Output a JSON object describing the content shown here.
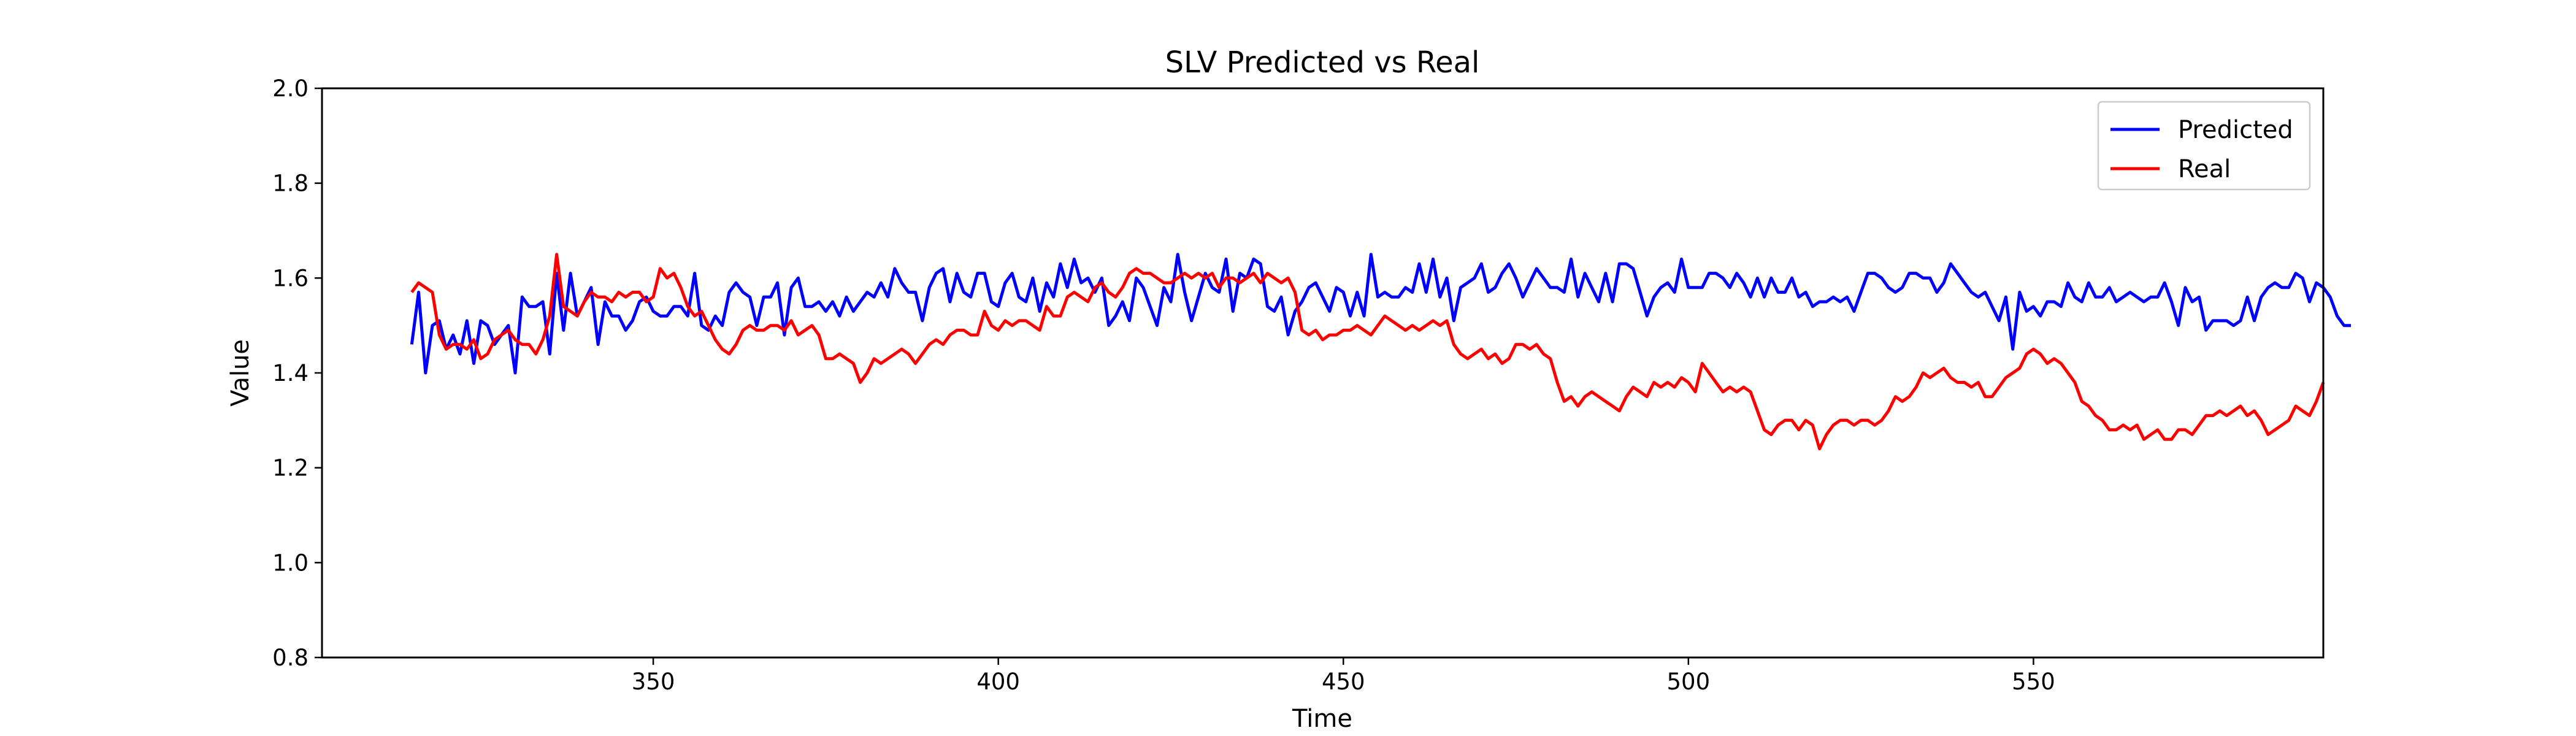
{
  "chart_data": {
    "type": "line",
    "title": "SLV Predicted vs Real",
    "xlabel": "Time",
    "ylabel": "Value",
    "xlim": [
      302,
      592
    ],
    "ylim": [
      0.8,
      2.0
    ],
    "x_ticks": [
      350,
      400,
      450,
      500,
      550
    ],
    "y_ticks": [
      0.8,
      1.0,
      1.2,
      1.4,
      1.6,
      1.8,
      2.0
    ],
    "y_tick_labels": [
      "0.8",
      "1.0",
      "1.2",
      "1.4",
      "1.6",
      "1.8",
      "2.0"
    ],
    "grid": false,
    "legend_position": "upper right",
    "x_start": 315,
    "series": [
      {
        "name": "Predicted",
        "color": "#0000ff",
        "values": [
          1.46,
          1.57,
          1.4,
          1.5,
          1.51,
          1.45,
          1.48,
          1.44,
          1.51,
          1.42,
          1.51,
          1.5,
          1.46,
          1.48,
          1.5,
          1.4,
          1.56,
          1.54,
          1.54,
          1.55,
          1.44,
          1.61,
          1.49,
          1.61,
          1.52,
          1.55,
          1.58,
          1.46,
          1.55,
          1.52,
          1.52,
          1.49,
          1.51,
          1.55,
          1.56,
          1.53,
          1.52,
          1.52,
          1.54,
          1.54,
          1.52,
          1.61,
          1.5,
          1.49,
          1.52,
          1.5,
          1.57,
          1.59,
          1.57,
          1.56,
          1.5,
          1.56,
          1.56,
          1.59,
          1.48,
          1.58,
          1.6,
          1.54,
          1.54,
          1.55,
          1.53,
          1.55,
          1.52,
          1.56,
          1.53,
          1.55,
          1.57,
          1.56,
          1.59,
          1.56,
          1.62,
          1.59,
          1.57,
          1.57,
          1.51,
          1.58,
          1.61,
          1.62,
          1.55,
          1.61,
          1.57,
          1.56,
          1.61,
          1.61,
          1.55,
          1.54,
          1.59,
          1.61,
          1.56,
          1.55,
          1.6,
          1.53,
          1.59,
          1.56,
          1.63,
          1.58,
          1.64,
          1.59,
          1.6,
          1.57,
          1.6,
          1.5,
          1.52,
          1.55,
          1.51,
          1.6,
          1.58,
          1.54,
          1.5,
          1.58,
          1.55,
          1.65,
          1.57,
          1.51,
          1.56,
          1.61,
          1.58,
          1.57,
          1.64,
          1.53,
          1.61,
          1.6,
          1.64,
          1.63,
          1.54,
          1.53,
          1.56,
          1.48,
          1.53,
          1.55,
          1.58,
          1.59,
          1.56,
          1.53,
          1.58,
          1.57,
          1.52,
          1.57,
          1.52,
          1.65,
          1.56,
          1.57,
          1.56,
          1.56,
          1.58,
          1.57,
          1.63,
          1.57,
          1.64,
          1.56,
          1.6,
          1.51,
          1.58,
          1.59,
          1.6,
          1.63,
          1.57,
          1.58,
          1.61,
          1.63,
          1.6,
          1.56,
          1.59,
          1.62,
          1.6,
          1.58,
          1.58,
          1.57,
          1.64,
          1.56,
          1.61,
          1.58,
          1.55,
          1.61,
          1.55,
          1.63,
          1.63,
          1.62,
          1.57,
          1.52,
          1.56,
          1.58,
          1.59,
          1.57,
          1.64,
          1.58,
          1.58,
          1.58,
          1.61,
          1.61,
          1.6,
          1.58,
          1.61,
          1.59,
          1.56,
          1.6,
          1.56,
          1.6,
          1.57,
          1.57,
          1.6,
          1.56,
          1.57,
          1.54,
          1.55,
          1.55,
          1.56,
          1.55,
          1.56,
          1.53,
          1.57,
          1.61,
          1.61,
          1.6,
          1.58,
          1.57,
          1.58,
          1.61,
          1.61,
          1.6,
          1.6,
          1.57,
          1.59,
          1.63,
          1.61,
          1.59,
          1.57,
          1.56,
          1.57,
          1.54,
          1.51,
          1.56,
          1.45,
          1.57,
          1.53,
          1.54,
          1.52,
          1.55,
          1.55,
          1.54,
          1.59,
          1.56,
          1.55,
          1.59,
          1.56,
          1.56,
          1.58,
          1.55,
          1.56,
          1.57,
          1.56,
          1.55,
          1.56,
          1.56,
          1.59,
          1.55,
          1.5,
          1.58,
          1.55,
          1.56,
          1.49,
          1.51,
          1.51,
          1.51,
          1.5,
          1.51,
          1.56,
          1.51,
          1.56,
          1.58,
          1.59,
          1.58,
          1.58,
          1.61,
          1.6,
          1.55,
          1.59,
          1.58,
          1.56,
          1.52,
          1.5,
          1.5
        ]
      },
      {
        "name": "Real",
        "color": "#ff0000",
        "values": [
          1.57,
          1.59,
          1.58,
          1.57,
          1.48,
          1.45,
          1.46,
          1.46,
          1.45,
          1.47,
          1.43,
          1.44,
          1.47,
          1.48,
          1.49,
          1.47,
          1.46,
          1.46,
          1.44,
          1.47,
          1.52,
          1.65,
          1.54,
          1.53,
          1.52,
          1.55,
          1.57,
          1.56,
          1.56,
          1.55,
          1.57,
          1.56,
          1.57,
          1.57,
          1.55,
          1.56,
          1.62,
          1.6,
          1.61,
          1.58,
          1.54,
          1.52,
          1.53,
          1.5,
          1.47,
          1.45,
          1.44,
          1.46,
          1.49,
          1.5,
          1.49,
          1.49,
          1.5,
          1.5,
          1.49,
          1.51,
          1.48,
          1.49,
          1.5,
          1.48,
          1.43,
          1.43,
          1.44,
          1.43,
          1.42,
          1.38,
          1.4,
          1.43,
          1.42,
          1.43,
          1.44,
          1.45,
          1.44,
          1.42,
          1.44,
          1.46,
          1.47,
          1.46,
          1.48,
          1.49,
          1.49,
          1.48,
          1.48,
          1.53,
          1.5,
          1.49,
          1.51,
          1.5,
          1.51,
          1.51,
          1.5,
          1.49,
          1.54,
          1.52,
          1.52,
          1.56,
          1.57,
          1.56,
          1.55,
          1.58,
          1.59,
          1.57,
          1.56,
          1.58,
          1.61,
          1.62,
          1.61,
          1.61,
          1.6,
          1.59,
          1.59,
          1.6,
          1.61,
          1.6,
          1.61,
          1.6,
          1.61,
          1.58,
          1.6,
          1.6,
          1.59,
          1.6,
          1.61,
          1.59,
          1.61,
          1.6,
          1.59,
          1.6,
          1.57,
          1.49,
          1.48,
          1.49,
          1.47,
          1.48,
          1.48,
          1.49,
          1.49,
          1.5,
          1.49,
          1.48,
          1.5,
          1.52,
          1.51,
          1.5,
          1.49,
          1.5,
          1.49,
          1.5,
          1.51,
          1.5,
          1.51,
          1.46,
          1.44,
          1.43,
          1.44,
          1.45,
          1.43,
          1.44,
          1.42,
          1.43,
          1.46,
          1.46,
          1.45,
          1.46,
          1.44,
          1.43,
          1.38,
          1.34,
          1.35,
          1.33,
          1.35,
          1.36,
          1.35,
          1.34,
          1.33,
          1.32,
          1.35,
          1.37,
          1.36,
          1.35,
          1.38,
          1.37,
          1.38,
          1.37,
          1.39,
          1.38,
          1.36,
          1.42,
          1.4,
          1.38,
          1.36,
          1.37,
          1.36,
          1.37,
          1.36,
          1.32,
          1.28,
          1.27,
          1.29,
          1.3,
          1.3,
          1.28,
          1.3,
          1.29,
          1.24,
          1.27,
          1.29,
          1.3,
          1.3,
          1.29,
          1.3,
          1.3,
          1.29,
          1.3,
          1.32,
          1.35,
          1.34,
          1.35,
          1.37,
          1.4,
          1.39,
          1.4,
          1.41,
          1.39,
          1.38,
          1.38,
          1.37,
          1.38,
          1.35,
          1.35,
          1.37,
          1.39,
          1.4,
          1.41,
          1.44,
          1.45,
          1.44,
          1.42,
          1.43,
          1.42,
          1.4,
          1.38,
          1.34,
          1.33,
          1.31,
          1.3,
          1.28,
          1.28,
          1.29,
          1.28,
          1.29,
          1.26,
          1.27,
          1.28,
          1.26,
          1.26,
          1.28,
          1.28,
          1.27,
          1.29,
          1.31,
          1.31,
          1.32,
          1.31,
          1.32,
          1.33,
          1.31,
          1.32,
          1.3,
          1.27,
          1.28,
          1.29,
          1.3,
          1.33,
          1.32,
          1.31,
          1.34,
          1.38
        ]
      }
    ]
  }
}
